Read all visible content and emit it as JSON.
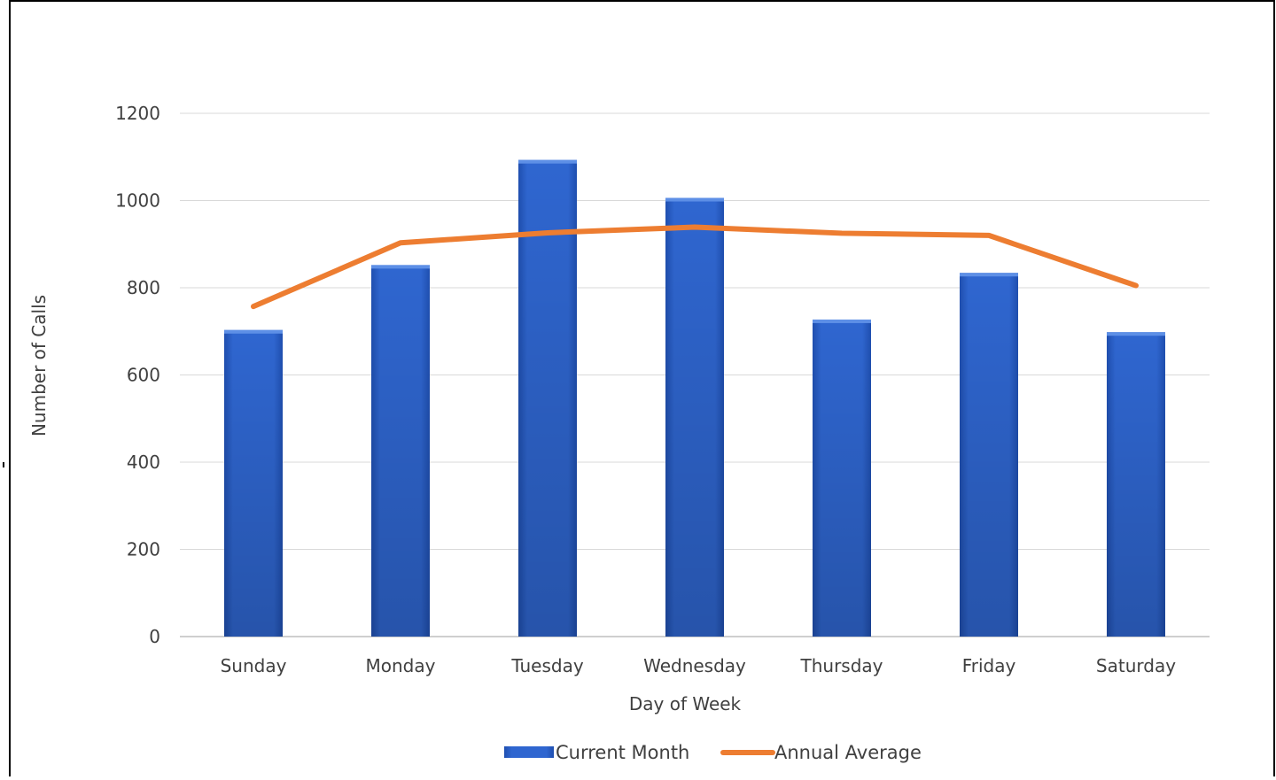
{
  "chart_data": {
    "type": "bar",
    "title": "",
    "xlabel": "Day of Week",
    "ylabel": "Number of Calls",
    "categories": [
      "Sunday",
      "Monday",
      "Tuesday",
      "Wednesday",
      "Thursday",
      "Friday",
      "Saturday"
    ],
    "ylim": [
      0,
      1200
    ],
    "yticks": [
      0,
      200,
      400,
      600,
      800,
      1000,
      1200
    ],
    "grid": true,
    "legend_position": "bottom",
    "series": [
      {
        "name": "Current Month",
        "type": "bar",
        "color": "#2F66D0",
        "values": [
          703,
          852,
          1093,
          1006,
          727,
          834,
          698
        ]
      },
      {
        "name": "Annual Average",
        "type": "line",
        "color": "#ED7D31",
        "values": [
          757,
          903,
          926,
          939,
          925,
          920,
          805
        ]
      }
    ]
  }
}
